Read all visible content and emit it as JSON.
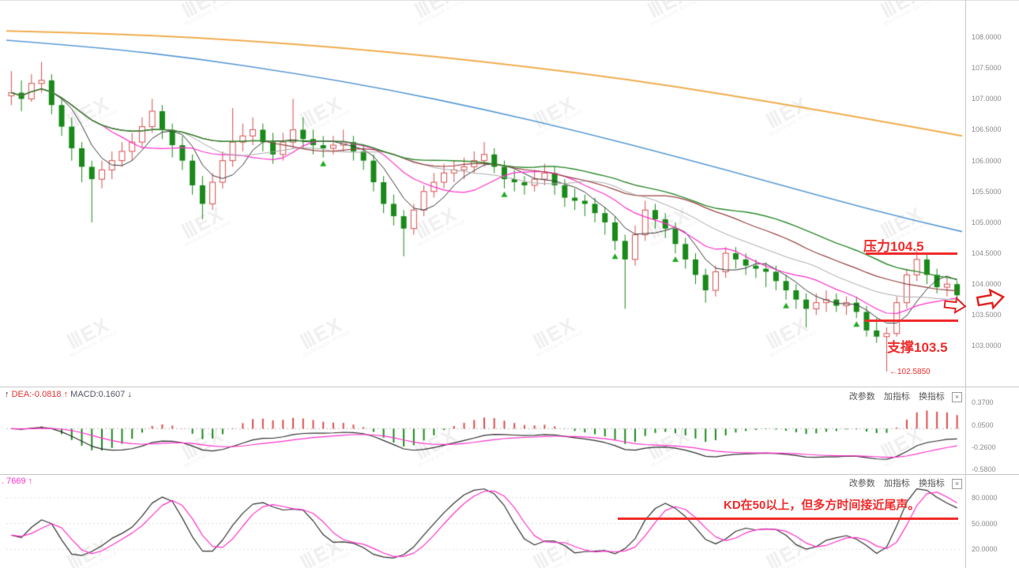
{
  "watermark": {
    "logo": "ⅢEX",
    "sub": "Multibank Group"
  },
  "main_chart": {
    "y_axis_labels": [
      "108.0000",
      "107.5000",
      "107.0000",
      "106.5000",
      "106.0000",
      "105.5000",
      "105.0000",
      "104.5000",
      "104.0000",
      "103.5000",
      "103.0000"
    ],
    "annotations": {
      "resistance_label": "压力104.5",
      "resistance_price": 104.5,
      "support_label": "支撑103.5",
      "support_price": 103.5,
      "low_marker": "←102.5850",
      "low_price": 102.585
    }
  },
  "macd_panel": {
    "label": {
      "arrow1": "↑",
      "dea": "DEA:-0.0818",
      "arrow2": "↑",
      "macd": "MACD:0.1607",
      "arrow3": "↓"
    },
    "toolbar": {
      "change_params": "改参数",
      "add_indicator": "加指标",
      "switch_indicator": "换指标",
      "close": "×"
    },
    "y_axis_labels": [
      "0.3700",
      "0.0500",
      "-0.2600",
      "-0.5800"
    ]
  },
  "kd_panel": {
    "indicator_label": ". 7669 ↑",
    "toolbar": {
      "change_params": "改参数",
      "add_indicator": "加指标",
      "switch_indicator": "换指标",
      "close": "×"
    },
    "y_axis_labels": [
      "80.0000",
      "50.0000",
      "20.0000"
    ],
    "annotation": "KD在50以上，但多方时间接近尾声。"
  },
  "chart_data": {
    "type": "candlestick-with-indicators",
    "main": {
      "ylim": [
        102.38,
        108.55
      ],
      "yticks": [
        108,
        107.5,
        107,
        106.5,
        106,
        105.5,
        105,
        104.5,
        104,
        103.5,
        103
      ],
      "colors": {
        "bull": "#d94f4f",
        "bear": "#1a8a1a"
      },
      "candles": [
        [
          107.05,
          107.45,
          106.9,
          107.1
        ],
        [
          107.1,
          107.3,
          106.8,
          107.0
        ],
        [
          107.0,
          107.4,
          106.95,
          107.25
        ],
        [
          107.25,
          107.6,
          107.1,
          107.3
        ],
        [
          107.3,
          107.4,
          106.75,
          106.9
        ],
        [
          106.9,
          107.0,
          106.4,
          106.55
        ],
        [
          106.55,
          106.7,
          106.0,
          106.2
        ],
        [
          106.2,
          106.3,
          105.65,
          105.9
        ],
        [
          105.9,
          106.0,
          105.0,
          105.7
        ],
        [
          105.7,
          106.0,
          105.55,
          105.85
        ],
        [
          105.85,
          106.15,
          105.7,
          106.0
        ],
        [
          106.0,
          106.3,
          105.9,
          106.15
        ],
        [
          106.15,
          106.45,
          106.0,
          106.3
        ],
        [
          106.3,
          106.7,
          106.2,
          106.55
        ],
        [
          106.55,
          107.0,
          106.45,
          106.8
        ],
        [
          106.8,
          106.9,
          106.35,
          106.5
        ],
        [
          106.5,
          106.6,
          106.05,
          106.25
        ],
        [
          106.25,
          106.4,
          105.85,
          106.0
        ],
        [
          106.0,
          106.1,
          105.45,
          105.6
        ],
        [
          105.6,
          105.75,
          105.05,
          105.3
        ],
        [
          105.3,
          105.8,
          105.2,
          105.65
        ],
        [
          105.65,
          106.15,
          105.55,
          106.0
        ],
        [
          106.0,
          106.85,
          105.9,
          106.3
        ],
        [
          106.3,
          106.6,
          106.15,
          106.4
        ],
        [
          106.4,
          106.7,
          106.25,
          106.5
        ],
        [
          106.5,
          106.6,
          106.15,
          106.3
        ],
        [
          106.3,
          106.45,
          105.95,
          106.1
        ],
        [
          106.1,
          106.45,
          106.0,
          106.3
        ],
        [
          106.3,
          107.0,
          106.2,
          106.5
        ],
        [
          106.5,
          106.7,
          106.2,
          106.35
        ],
        [
          106.35,
          106.5,
          106.1,
          106.25
        ],
        [
          106.25,
          106.4,
          106.05,
          106.2
        ],
        [
          106.2,
          106.4,
          106.1,
          106.25
        ],
        [
          106.25,
          106.5,
          106.15,
          106.3
        ],
        [
          106.3,
          106.4,
          106.0,
          106.15
        ],
        [
          106.15,
          106.25,
          105.85,
          106.0
        ],
        [
          106.0,
          106.1,
          105.5,
          105.65
        ],
        [
          105.65,
          105.75,
          105.15,
          105.3
        ],
        [
          105.3,
          105.45,
          104.95,
          105.1
        ],
        [
          105.1,
          105.2,
          104.45,
          104.9
        ],
        [
          104.9,
          105.3,
          104.8,
          105.2
        ],
        [
          105.2,
          105.6,
          105.1,
          105.5
        ],
        [
          105.5,
          105.8,
          105.4,
          105.65
        ],
        [
          105.65,
          105.95,
          105.55,
          105.8
        ],
        [
          105.8,
          106.0,
          105.65,
          105.85
        ],
        [
          105.85,
          106.05,
          105.7,
          105.9
        ],
        [
          105.9,
          106.15,
          105.8,
          106.0
        ],
        [
          106.0,
          106.3,
          105.9,
          106.1
        ],
        [
          106.1,
          106.2,
          105.8,
          105.9
        ],
        [
          105.9,
          106.0,
          105.55,
          105.7
        ],
        [
          105.7,
          105.85,
          105.5,
          105.65
        ],
        [
          105.65,
          105.75,
          105.45,
          105.6
        ],
        [
          105.6,
          105.85,
          105.5,
          105.7
        ],
        [
          105.7,
          105.95,
          105.6,
          105.8
        ],
        [
          105.8,
          105.9,
          105.45,
          105.6
        ],
        [
          105.6,
          105.7,
          105.25,
          105.4
        ],
        [
          105.4,
          105.55,
          105.2,
          105.35
        ],
        [
          105.35,
          105.45,
          105.1,
          105.3
        ],
        [
          105.3,
          105.4,
          105.0,
          105.15
        ],
        [
          105.15,
          105.25,
          104.8,
          105.0
        ],
        [
          105.0,
          105.1,
          104.55,
          104.7
        ],
        [
          104.7,
          104.8,
          103.6,
          104.4
        ],
        [
          104.4,
          104.95,
          104.3,
          104.8
        ],
        [
          104.8,
          105.35,
          104.7,
          105.2
        ],
        [
          105.2,
          105.3,
          104.9,
          105.05
        ],
        [
          105.05,
          105.15,
          104.75,
          104.9
        ],
        [
          104.9,
          105.0,
          104.5,
          104.65
        ],
        [
          104.65,
          104.75,
          104.25,
          104.4
        ],
        [
          104.4,
          104.5,
          104.0,
          104.15
        ],
        [
          104.15,
          104.25,
          103.7,
          103.9
        ],
        [
          103.9,
          104.3,
          103.8,
          104.2
        ],
        [
          104.2,
          104.6,
          104.1,
          104.5
        ],
        [
          104.5,
          104.6,
          104.25,
          104.4
        ],
        [
          104.4,
          104.5,
          104.15,
          104.3
        ],
        [
          104.3,
          104.4,
          104.1,
          104.25
        ],
        [
          104.25,
          104.35,
          103.95,
          104.2
        ],
        [
          104.2,
          104.3,
          103.9,
          104.05
        ],
        [
          104.05,
          104.15,
          103.75,
          103.9
        ],
        [
          103.9,
          104.0,
          103.6,
          103.75
        ],
        [
          103.75,
          103.85,
          103.3,
          103.6
        ],
        [
          103.6,
          103.85,
          103.5,
          103.7
        ],
        [
          103.7,
          103.9,
          103.55,
          103.75
        ],
        [
          103.75,
          103.85,
          103.55,
          103.65
        ],
        [
          103.65,
          103.8,
          103.5,
          103.7
        ],
        [
          103.7,
          103.8,
          103.45,
          103.55
        ],
        [
          103.55,
          103.65,
          103.15,
          103.25
        ],
        [
          103.25,
          103.45,
          103.05,
          103.15
        ],
        [
          103.15,
          103.3,
          102.585,
          103.2
        ],
        [
          103.2,
          103.8,
          103.15,
          103.7
        ],
        [
          103.7,
          104.25,
          103.6,
          104.15
        ],
        [
          104.15,
          104.55,
          104.05,
          104.4
        ],
        [
          104.4,
          104.5,
          104.0,
          104.15
        ],
        [
          104.15,
          104.25,
          103.85,
          103.95
        ],
        [
          103.95,
          104.1,
          103.8,
          104.0
        ],
        [
          104.0,
          104.05,
          103.7,
          103.82
        ]
      ],
      "ma_overlays": [
        {
          "name": "ma-fast",
          "period": 5,
          "color": "#3a3a3a",
          "width": 1
        },
        {
          "name": "ma-10",
          "period": 10,
          "color": "#ff33cc",
          "width": 1.2
        },
        {
          "name": "ma-18",
          "period": 18,
          "color": "#aaaaaa",
          "width": 1
        },
        {
          "name": "ma-26",
          "period": 26,
          "color": "#994444",
          "width": 1.2
        },
        {
          "name": "ma-34",
          "period": 34,
          "color": "#2e8b2e",
          "width": 1.4
        }
      ],
      "long_ma_lines": [
        {
          "name": "orange-ma",
          "color": "#f0ad4e",
          "width": 2,
          "points": [
            [
              0.0,
              108.1
            ],
            [
              0.1,
              108.06
            ],
            [
              0.2,
              107.99
            ],
            [
              0.3,
              107.89
            ],
            [
              0.4,
              107.76
            ],
            [
              0.5,
              107.6
            ],
            [
              0.6,
              107.42
            ],
            [
              0.7,
              107.2
            ],
            [
              0.8,
              106.95
            ],
            [
              0.9,
              106.68
            ],
            [
              1.0,
              106.4
            ]
          ]
        },
        {
          "name": "blue-ma",
          "color": "#5b9bd5",
          "width": 1.6,
          "points": [
            [
              0.0,
              107.95
            ],
            [
              0.1,
              107.83
            ],
            [
              0.2,
              107.65
            ],
            [
              0.3,
              107.42
            ],
            [
              0.4,
              107.15
            ],
            [
              0.5,
              106.83
            ],
            [
              0.6,
              106.47
            ],
            [
              0.7,
              106.07
            ],
            [
              0.8,
              105.65
            ],
            [
              0.9,
              105.22
            ],
            [
              1.0,
              104.85
            ]
          ]
        }
      ],
      "markers": {
        "shape": "up-triangle",
        "color": "#22aa22",
        "indices": [
          31,
          49,
          60,
          66,
          77,
          84
        ]
      }
    },
    "macd": {
      "ylim": [
        -0.62,
        0.44
      ],
      "yticks": [
        0.37,
        0.05,
        -0.26,
        -0.58
      ],
      "params": {
        "fast": 12,
        "slow": 26,
        "signal": 9
      },
      "dea_value": -0.0818,
      "macd_value": 0.1607,
      "colors": {
        "dif": "#333333",
        "dea": "#ff33cc",
        "pos": "#d94f4f",
        "neg": "#1a8a1a"
      }
    },
    "kd": {
      "ylim": [
        -1,
        103
      ],
      "yticks": [
        80,
        50,
        20
      ],
      "period": 9,
      "colors": {
        "k": "#333333",
        "d": "#ff33cc"
      }
    }
  }
}
